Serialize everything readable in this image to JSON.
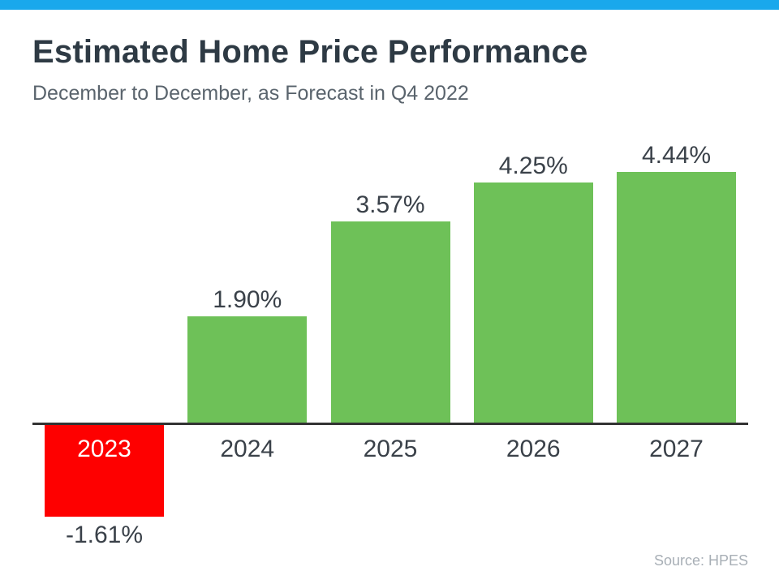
{
  "header": {
    "title": "Estimated Home Price Performance",
    "subtitle": "December to December, as Forecast in Q4 2022"
  },
  "footer": {
    "source": "Source: HPES"
  },
  "colors": {
    "top_accent_bar": "#19A8EC",
    "title_text": "#2E3A44",
    "subtitle_text": "#5A646D",
    "label_text": "#3A4149",
    "negative_year_label_text": "#FFFFFF",
    "axis_line": "#333333",
    "positive_bar": "#6EC158",
    "negative_bar": "#FE0000",
    "source_text": "#A8AFB6",
    "background": "#FFFFFF"
  },
  "chart_data": {
    "type": "bar",
    "title": "Estimated Home Price Performance",
    "subtitle": "December to December, as Forecast in Q4 2022",
    "categories": [
      "2023",
      "2024",
      "2025",
      "2026",
      "2027"
    ],
    "values": [
      -1.61,
      1.9,
      3.57,
      4.25,
      4.44
    ],
    "value_labels": [
      "-1.61%",
      "1.90%",
      "3.57%",
      "4.25%",
      "4.44%"
    ],
    "bar_colors": [
      "#FE0000",
      "#6EC158",
      "#6EC158",
      "#6EC158",
      "#6EC158"
    ],
    "xlabel": "",
    "ylabel": "",
    "ylim": [
      -2,
      5
    ],
    "grid": false,
    "legend": false,
    "baseline": 0,
    "annotation": "Source: HPES",
    "notes": "Negative 2023 bar drawn below the zero axis in red; its year label sits inside the bar in white and its value label sits beneath the bar."
  }
}
